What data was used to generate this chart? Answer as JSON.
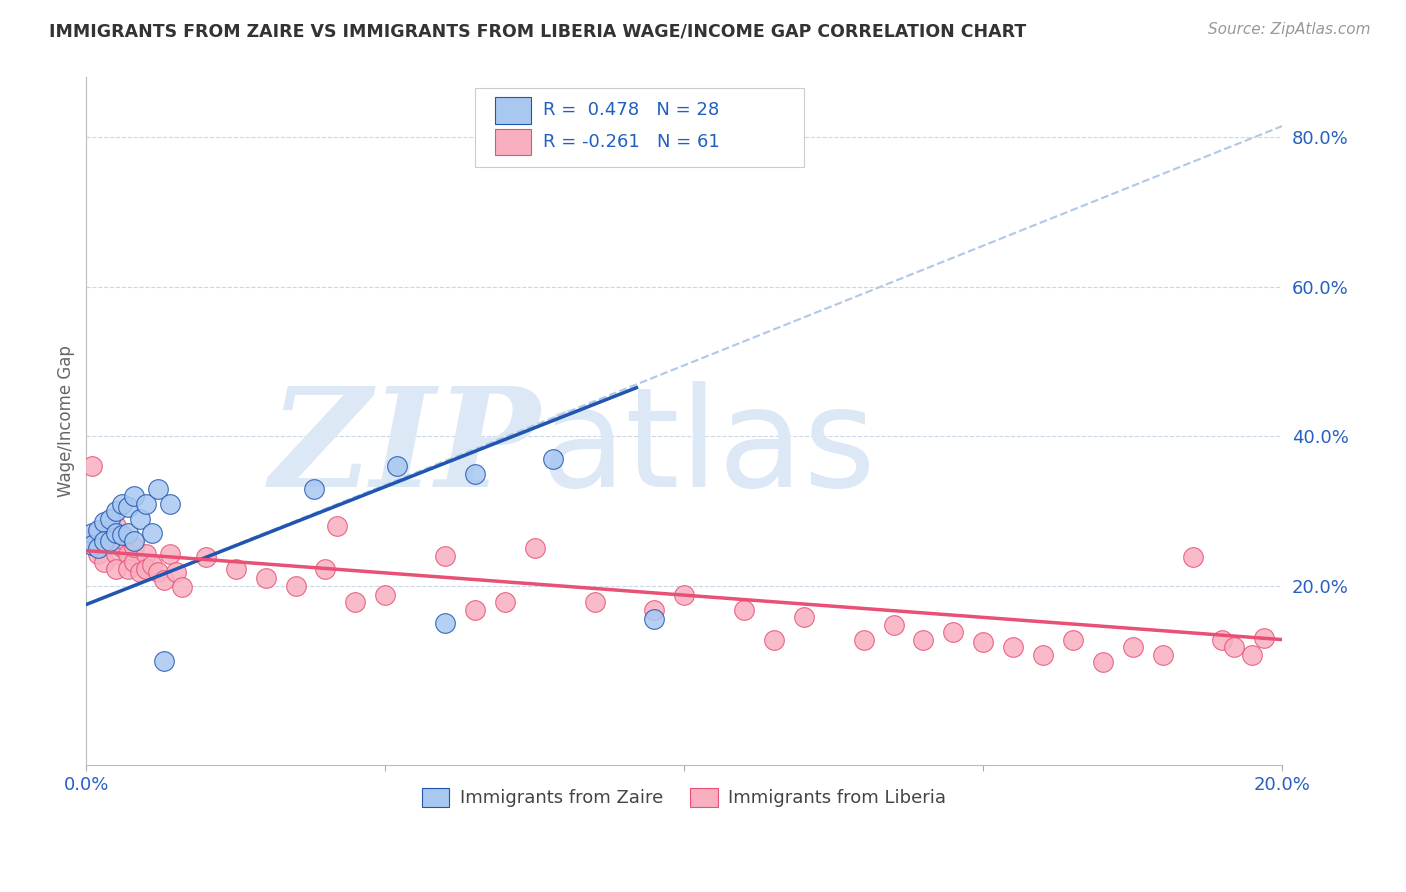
{
  "title": "IMMIGRANTS FROM ZAIRE VS IMMIGRANTS FROM LIBERIA WAGE/INCOME GAP CORRELATION CHART",
  "source": "Source: ZipAtlas.com",
  "ylabel": "Wage/Income Gap",
  "xmin": 0.0,
  "xmax": 0.2,
  "ymin": -0.04,
  "ymax": 0.88,
  "zaire_color": "#A8C8F0",
  "liberia_color": "#F8B0C0",
  "zaire_line_color": "#2055B0",
  "liberia_line_color": "#E85075",
  "dashed_line_color": "#B0C8E8",
  "watermark_color": "#DCE8F5",
  "R_zaire": "0.478",
  "N_zaire": "28",
  "R_liberia": "-0.261",
  "N_liberia": "61",
  "legend_zaire_label": "Immigrants from Zaire",
  "legend_liberia_label": "Immigrants from Liberia",
  "zaire_line_x": [
    0.0,
    0.092
  ],
  "zaire_line_y": [
    0.175,
    0.465
  ],
  "dashed_line_x": [
    0.0,
    0.2
  ],
  "dashed_line_y": [
    0.175,
    0.815
  ],
  "liberia_line_x": [
    0.0,
    0.2
  ],
  "liberia_line_y": [
    0.247,
    0.128
  ],
  "zaire_x": [
    0.001,
    0.001,
    0.002,
    0.002,
    0.003,
    0.003,
    0.004,
    0.004,
    0.005,
    0.005,
    0.006,
    0.006,
    0.007,
    0.007,
    0.008,
    0.008,
    0.009,
    0.01,
    0.011,
    0.012,
    0.013,
    0.014,
    0.038,
    0.052,
    0.06,
    0.065,
    0.078,
    0.095
  ],
  "zaire_y": [
    0.27,
    0.255,
    0.275,
    0.25,
    0.285,
    0.26,
    0.29,
    0.26,
    0.3,
    0.27,
    0.31,
    0.268,
    0.305,
    0.27,
    0.32,
    0.26,
    0.29,
    0.31,
    0.27,
    0.33,
    0.1,
    0.31,
    0.33,
    0.36,
    0.15,
    0.35,
    0.37,
    0.155
  ],
  "liberia_x": [
    0.001,
    0.001,
    0.002,
    0.002,
    0.003,
    0.003,
    0.003,
    0.004,
    0.004,
    0.005,
    0.005,
    0.005,
    0.006,
    0.006,
    0.007,
    0.007,
    0.008,
    0.008,
    0.009,
    0.01,
    0.01,
    0.011,
    0.012,
    0.013,
    0.014,
    0.015,
    0.016,
    0.02,
    0.025,
    0.03,
    0.035,
    0.04,
    0.042,
    0.045,
    0.05,
    0.06,
    0.065,
    0.07,
    0.075,
    0.085,
    0.095,
    0.1,
    0.11,
    0.115,
    0.12,
    0.13,
    0.135,
    0.14,
    0.145,
    0.15,
    0.155,
    0.16,
    0.165,
    0.17,
    0.175,
    0.18,
    0.185,
    0.19,
    0.192,
    0.195,
    0.197
  ],
  "liberia_y": [
    0.262,
    0.36,
    0.242,
    0.272,
    0.272,
    0.252,
    0.232,
    0.265,
    0.275,
    0.28,
    0.242,
    0.222,
    0.252,
    0.262,
    0.242,
    0.222,
    0.232,
    0.252,
    0.218,
    0.242,
    0.222,
    0.228,
    0.218,
    0.208,
    0.242,
    0.218,
    0.198,
    0.238,
    0.222,
    0.21,
    0.2,
    0.222,
    0.28,
    0.178,
    0.188,
    0.24,
    0.168,
    0.178,
    0.25,
    0.178,
    0.168,
    0.188,
    0.168,
    0.128,
    0.158,
    0.128,
    0.148,
    0.128,
    0.138,
    0.125,
    0.118,
    0.108,
    0.128,
    0.098,
    0.118,
    0.108,
    0.238,
    0.128,
    0.118,
    0.108,
    0.13
  ]
}
